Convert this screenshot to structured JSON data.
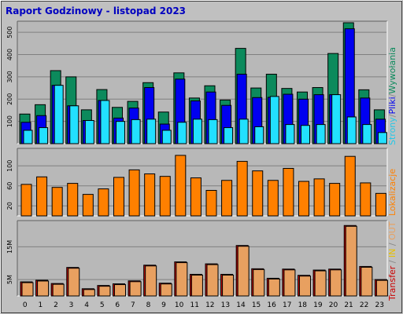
{
  "title": "Raport Godzinowy -  listopad 2023",
  "colors": {
    "background": "#c0c0c0",
    "plot_area": "#b8b8b8",
    "grid": "#808080",
    "hits": "#0c8a5c",
    "files": "#0000f0",
    "pages": "#22e0ff",
    "visits": "#ff8000",
    "transfer": "#e8a060",
    "transfer_edge": "#cc0000"
  },
  "side_labels": {
    "top": [
      {
        "text": "Strony",
        "color": "#22c8e8"
      },
      {
        "text": "/",
        "color": "#888888"
      },
      {
        "text": "Pliki",
        "color": "#0000f0"
      },
      {
        "text": "/",
        "color": "#888888"
      },
      {
        "text": "Wywołania",
        "color": "#0c8a5c"
      }
    ],
    "middle": [
      {
        "text": "Lokalizacje",
        "color": "#ff8000"
      }
    ],
    "bottom": [
      {
        "text": "Transfer",
        "color": "#cc0000"
      },
      {
        "text": " / ",
        "color": "#888888"
      },
      {
        "text": "IN",
        "color": "#e8c000"
      },
      {
        "text": " / ",
        "color": "#888888"
      },
      {
        "text": "OUT",
        "color": "#e8a060"
      }
    ]
  },
  "chart_data": [
    {
      "type": "bar",
      "title": "",
      "categories": [
        "0",
        "1",
        "2",
        "3",
        "4",
        "5",
        "6",
        "7",
        "8",
        "9",
        "10",
        "11",
        "12",
        "13",
        "14",
        "15",
        "16",
        "17",
        "18",
        "19",
        "20",
        "21",
        "22",
        "23"
      ],
      "ylim": [
        0,
        550
      ],
      "yticks": [
        100,
        200,
        300,
        400,
        500
      ],
      "series": [
        {
          "name": "Wywołania",
          "values": [
            133,
            175,
            328,
            300,
            152,
            243,
            163,
            190,
            274,
            142,
            318,
            205,
            260,
            196,
            428,
            250,
            312,
            248,
            232,
            252,
            405,
            543,
            242,
            152
          ]
        },
        {
          "name": "Pliki",
          "values": [
            96,
            126,
            262,
            170,
            104,
            194,
            115,
            160,
            252,
            88,
            290,
            192,
            232,
            172,
            312,
            207,
            208,
            222,
            200,
            220,
            220,
            516,
            205,
            110
          ]
        },
        {
          "name": "Strony",
          "values": [
            60,
            72,
            262,
            170,
            104,
            194,
            100,
            108,
            110,
            60,
            96,
            110,
            108,
            72,
            110,
            76,
            212,
            86,
            82,
            86,
            220,
            120,
            86,
            50
          ]
        }
      ]
    },
    {
      "type": "bar",
      "title": "",
      "categories": [
        "0",
        "1",
        "2",
        "3",
        "4",
        "5",
        "6",
        "7",
        "8",
        "9",
        "10",
        "11",
        "12",
        "13",
        "14",
        "15",
        "16",
        "17",
        "18",
        "19",
        "20",
        "21",
        "22",
        "23"
      ],
      "ylim": [
        0,
        135
      ],
      "yticks": [
        20,
        60,
        100
      ],
      "series": [
        {
          "name": "Lokalizacje",
          "values": [
            63,
            78,
            57,
            65,
            43,
            54,
            77,
            92,
            84,
            79,
            121,
            76,
            51,
            71,
            109,
            90,
            71,
            95,
            69,
            74,
            65,
            119,
            66,
            45
          ]
        }
      ]
    },
    {
      "type": "bar",
      "title": "",
      "categories": [
        "0",
        "1",
        "2",
        "3",
        "4",
        "5",
        "6",
        "7",
        "8",
        "9",
        "10",
        "11",
        "12",
        "13",
        "14",
        "15",
        "16",
        "17",
        "18",
        "19",
        "20",
        "21",
        "22",
        "23"
      ],
      "ylim": [
        0,
        23
      ],
      "yticks": [
        5,
        15
      ],
      "ytick_labels": [
        "5M",
        "15M"
      ],
      "series": [
        {
          "name": "Transfer",
          "values": [
            4.3,
            4.8,
            3.8,
            8.7,
            2.2,
            3.2,
            3.7,
            4.6,
            9.4,
            3.9,
            10.4,
            6.6,
            9.8,
            6.6,
            15.4,
            8.3,
            5.4,
            8.2,
            6.3,
            7.9,
            8.2,
            21.5,
            9.0,
            5.0
          ]
        }
      ]
    }
  ]
}
